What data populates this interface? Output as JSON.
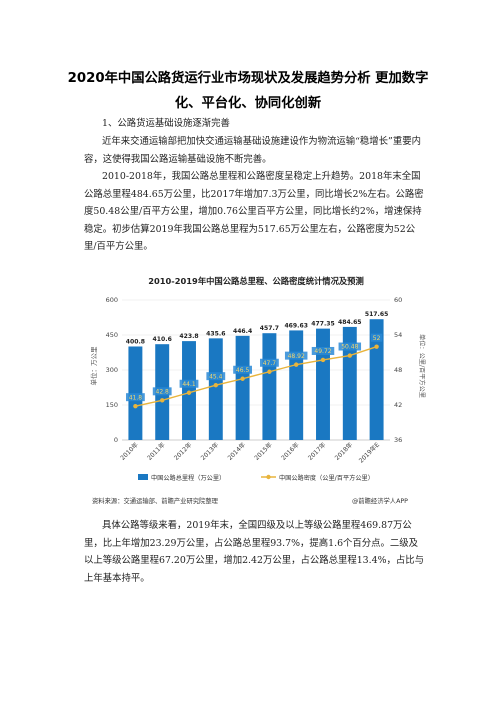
{
  "doc": {
    "title": "2020年中国公路货运行业市场现状及发展趋势分析 更加数字化、平台化、协同化创新",
    "section1": "1、公路货运基础设施逐渐完善",
    "para1": "近年来交通运输部把加快交通运输基础设施建设作为物流运输“稳增长”重要内容，这使得我国公路运输基础设施不断完善。",
    "para2": "2010-2018年，我国公路总里程和公路密度呈稳定上升趋势。2018年末全国公路总里程484.65万公里，比2017年增加7.3万公里，同比增长2%左右。公路密度50.48公里/百平方公里，增加0.76公里百平方公里，同比增长约2%，增速保持稳定。初步估算2019年我国公路总里程为517.65万公里左右，公路密度为52公里/百平方公里。",
    "para3": "具体公路等级来看，2019年末，全国四级及以上等级公路里程469.87万公里，比上年增加23.29万公里，占公路总里程93.7%，提高1.6个百分点。二级及以上等级公路里程67.20万公里，增加2.42万公里，占公路总里程13.4%，占比与上年基本持平。",
    "source_note": "资料来源：交通运输部、前瞻产业研究院整理",
    "app_note": "@前瞻经济学人APP"
  },
  "chart_data": {
    "type": "bar",
    "title": "2010-2019年中国公路总里程、公路密度统计情况及预测",
    "categories": [
      "2010年",
      "2011年",
      "2012年",
      "2013年",
      "2014年",
      "2015年",
      "2016年",
      "2017年",
      "2018年",
      "2019年E"
    ],
    "series": [
      {
        "name": "中国公路总里程（万公里）",
        "type": "bar",
        "axis": "left",
        "values": [
          400.8,
          410.6,
          423.8,
          435.6,
          446.4,
          457.7,
          469.63,
          477.35,
          484.65,
          517.65
        ]
      },
      {
        "name": "中国公路密度（公里/百平方公里）",
        "type": "line",
        "axis": "right",
        "values": [
          41.8,
          42.8,
          44.1,
          45.4,
          46.5,
          47.7,
          48.92,
          49.72,
          50.48,
          52
        ]
      }
    ],
    "ylabel": "单位：万公里",
    "y2label": "单位：公里/百平方公里",
    "ylim": [
      0,
      600
    ],
    "y2lim": [
      36,
      60
    ],
    "yticks": [
      0,
      150,
      300,
      450,
      600
    ],
    "y2ticks": [
      36,
      42,
      48,
      54,
      60
    ],
    "bar_labels": [
      "400.8",
      "410.6",
      "423.8",
      "435.6",
      "446.4",
      "457.7",
      "469.63",
      "477.35",
      "484.65",
      "517.65"
    ],
    "line_labels": [
      "41.8",
      "42.8",
      "44.1",
      "45.4",
      "46.5",
      "47.7",
      "48.92",
      "49.72",
      "50.48",
      "52"
    ],
    "grid": true,
    "legend": "bottom",
    "colors": {
      "bar": "#1a78c2",
      "bar_top": "#2a8ad6",
      "line": "#e8b43c",
      "label_bg": "#2a8ad6",
      "title": "#222222"
    }
  }
}
